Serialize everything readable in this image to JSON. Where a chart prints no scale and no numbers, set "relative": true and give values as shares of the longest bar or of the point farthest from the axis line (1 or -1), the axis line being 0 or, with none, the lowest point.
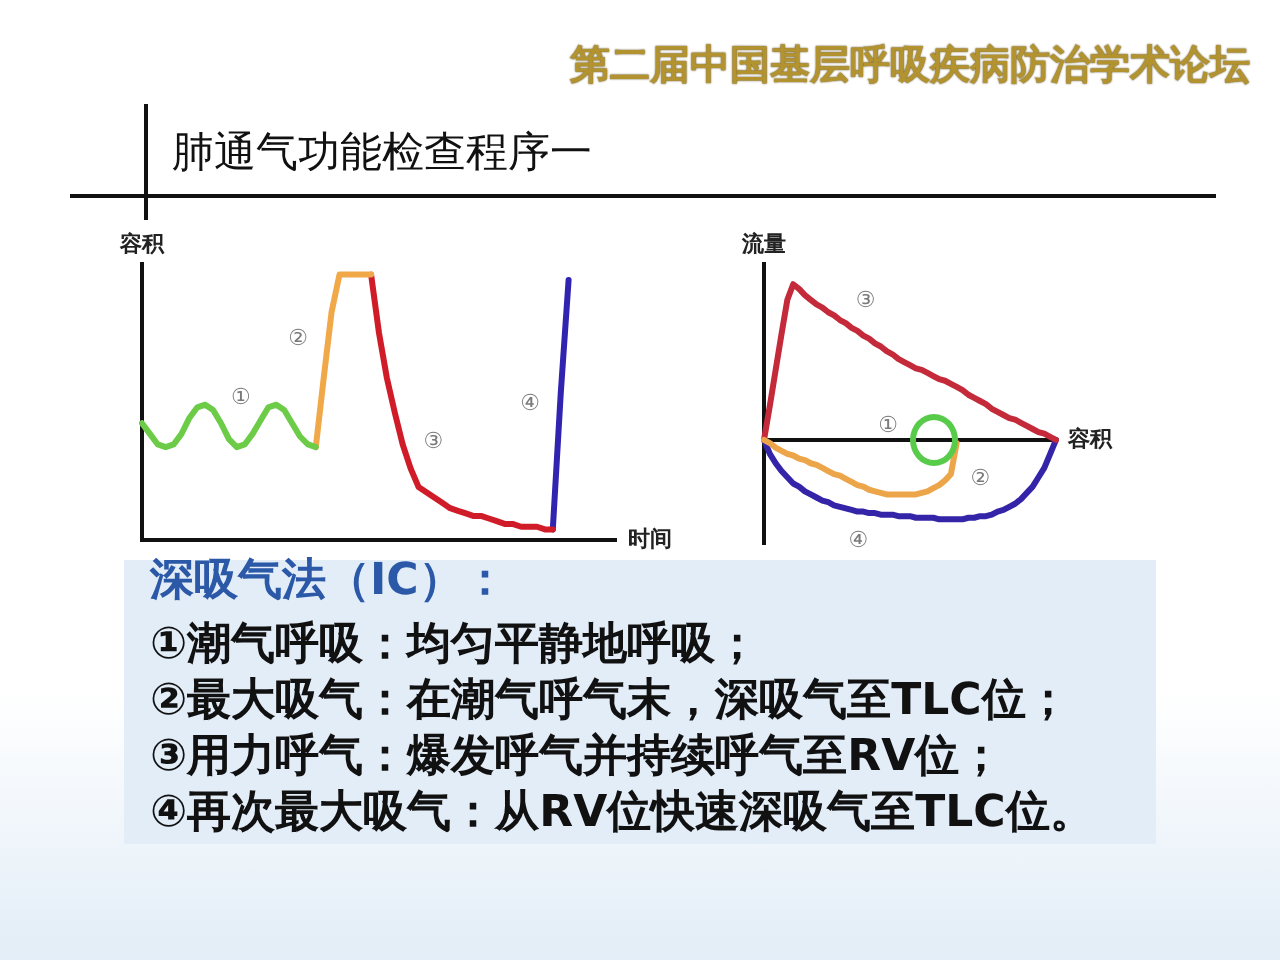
{
  "chart_data": [
    {
      "type": "other",
      "title": "肺通气功能检查程序一",
      "annotations": [
        "第二届中国基层呼吸疾病防治学术论坛"
      ]
    },
    {
      "type": "line",
      "relative": true,
      "ylabel": "容积",
      "xlabel": "时间",
      "marker": "none",
      "categories": [
        null,
        null,
        null,
        null,
        null,
        null,
        null,
        null,
        null,
        null,
        null,
        null,
        null,
        null,
        null,
        null,
        null,
        null,
        null,
        null,
        null,
        null,
        null,
        null,
        null,
        null,
        null,
        null,
        null,
        null,
        null,
        null,
        null,
        null,
        null,
        null,
        null,
        null,
        null,
        null,
        null,
        null,
        null,
        null,
        null,
        null,
        null,
        null,
        null,
        null,
        null,
        null,
        null,
        null,
        null,
        null,
        null,
        null,
        null,
        null,
        null
      ],
      "series": [
        {
          "name": "①",
          "color": "#6ccc48",
          "values": [
            0.44,
            0.4,
            0.36,
            0.35,
            0.36,
            0.4,
            0.46,
            0.5,
            0.51,
            0.49,
            0.44,
            0.38,
            0.35,
            0.36,
            0.4,
            0.45,
            0.5,
            0.51,
            0.49,
            0.44,
            0.39,
            0.36,
            0.35,
            null,
            null,
            null,
            null,
            null,
            null,
            null,
            null,
            null,
            null,
            null,
            null,
            null,
            null,
            null,
            null,
            null,
            null,
            null,
            null,
            null,
            null,
            null,
            null,
            null,
            null,
            null,
            null,
            null,
            null,
            null,
            null,
            null,
            null,
            null,
            null,
            null,
            null
          ]
        },
        {
          "name": "②",
          "color": "#f0a848",
          "values": [
            null,
            null,
            null,
            null,
            null,
            null,
            null,
            null,
            null,
            null,
            null,
            null,
            null,
            null,
            null,
            null,
            null,
            null,
            null,
            null,
            null,
            null,
            0.35,
            0.61,
            0.86,
            1,
            1,
            1,
            1,
            1,
            null,
            null,
            null,
            null,
            null,
            null,
            null,
            null,
            null,
            null,
            null,
            null,
            null,
            null,
            null,
            null,
            null,
            null,
            null,
            null,
            null,
            null,
            null,
            null,
            null,
            null,
            null,
            null,
            null,
            null,
            null
          ]
        },
        {
          "name": "③",
          "color": "#d01c28",
          "values": [
            null,
            null,
            null,
            null,
            null,
            null,
            null,
            null,
            null,
            null,
            null,
            null,
            null,
            null,
            null,
            null,
            null,
            null,
            null,
            null,
            null,
            null,
            null,
            null,
            null,
            null,
            null,
            null,
            null,
            1,
            0.78,
            0.61,
            0.48,
            0.36,
            0.27,
            0.2,
            0.18,
            0.16,
            0.14,
            0.12,
            0.11,
            0.1,
            0.09,
            0.09,
            0.08,
            0.07,
            0.06,
            0.06,
            0.05,
            0.05,
            0.05,
            0.04,
            0.04,
            null,
            null,
            null,
            null,
            null,
            null,
            null,
            null
          ]
        },
        {
          "name": "④",
          "color": "#3024b0",
          "values": [
            null,
            null,
            null,
            null,
            null,
            null,
            null,
            null,
            null,
            null,
            null,
            null,
            null,
            null,
            null,
            null,
            null,
            null,
            null,
            null,
            null,
            null,
            null,
            null,
            null,
            null,
            null,
            null,
            null,
            null,
            null,
            null,
            null,
            null,
            null,
            null,
            null,
            null,
            null,
            null,
            null,
            null,
            null,
            null,
            null,
            null,
            null,
            null,
            null,
            null,
            null,
            null,
            0.04,
            0.55,
            0.98,
            null,
            null,
            null,
            null,
            null,
            null
          ]
        }
      ]
    },
    {
      "type": "line",
      "relative": true,
      "ylabel": "流量",
      "xlabel": "容积",
      "marker": "none",
      "annotations": [
        "①"
      ],
      "categories": [
        null,
        null,
        null,
        null,
        null,
        null,
        null,
        null,
        null,
        null,
        null,
        null,
        null,
        null,
        null,
        null,
        null,
        null,
        null,
        null,
        null,
        null,
        null,
        null,
        null,
        null,
        null,
        null,
        null,
        null,
        null,
        null,
        null,
        null,
        null,
        null,
        null,
        null,
        null,
        null,
        null,
        null,
        null,
        null,
        null,
        null,
        null,
        null,
        null,
        null,
        null
      ],
      "series": [
        {
          "name": "②",
          "color": "#eda54a",
          "values": [
            0,
            -0.02,
            -0.05,
            -0.07,
            -0.09,
            -0.1,
            -0.12,
            -0.13,
            -0.15,
            -0.16,
            -0.18,
            -0.2,
            -0.22,
            -0.23,
            -0.25,
            -0.27,
            -0.29,
            -0.3,
            -0.32,
            -0.33,
            -0.34,
            -0.35,
            -0.35,
            -0.35,
            -0.35,
            -0.35,
            -0.35,
            -0.34,
            -0.33,
            -0.31,
            -0.29,
            -0.26,
            -0.22,
            -0.02,
            null,
            null,
            null,
            null,
            null,
            null,
            null,
            null,
            null,
            null,
            null,
            null,
            null,
            null,
            null,
            null,
            null
          ]
        },
        {
          "name": "③",
          "color": "#c42a3a",
          "values": [
            0,
            0.22,
            0.45,
            0.68,
            0.9,
            1,
            0.97,
            0.93,
            0.9,
            0.87,
            0.85,
            0.82,
            0.8,
            0.77,
            0.75,
            0.72,
            0.7,
            0.67,
            0.65,
            0.62,
            0.6,
            0.57,
            0.55,
            0.52,
            0.5,
            0.48,
            0.46,
            0.45,
            0.43,
            0.41,
            0.39,
            0.38,
            0.36,
            0.34,
            0.32,
            0.29,
            0.27,
            0.25,
            0.23,
            0.2,
            0.18,
            0.16,
            0.14,
            0.13,
            0.11,
            0.09,
            0.07,
            0.05,
            0.04,
            0.02,
            0
          ]
        },
        {
          "name": "④",
          "color": "#3424a8",
          "values": [
            0,
            -0.09,
            -0.15,
            -0.2,
            -0.24,
            -0.28,
            -0.3,
            -0.33,
            -0.35,
            -0.37,
            -0.39,
            -0.4,
            -0.42,
            -0.43,
            -0.44,
            -0.45,
            -0.46,
            -0.46,
            -0.47,
            -0.47,
            -0.48,
            -0.48,
            -0.48,
            -0.49,
            -0.49,
            -0.49,
            -0.5,
            -0.5,
            -0.5,
            -0.5,
            -0.51,
            -0.51,
            -0.51,
            -0.51,
            -0.51,
            -0.5,
            -0.5,
            -0.49,
            -0.49,
            -0.48,
            -0.46,
            -0.45,
            -0.43,
            -0.41,
            -0.38,
            -0.34,
            -0.3,
            -0.24,
            -0.18,
            -0.09,
            0
          ]
        }
      ]
    },
    {
      "type": "other",
      "title": "深吸气法（IC）：",
      "annotations": [
        "①潮气呼吸：均匀平静地呼吸；",
        "②最大吸气：在潮气呼气末，深吸气至TLC位；",
        "③用力呼气：爆发呼气并持续呼气至RV位；",
        "④再次最大吸气：从RV位快速深吸气至TLC位。"
      ]
    }
  ]
}
